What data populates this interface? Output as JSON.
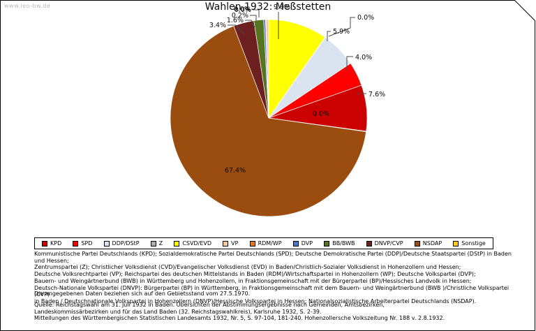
{
  "watermark": "www.leo-bw.de",
  "chart_data": {
    "type": "pie",
    "title": "Wahlen 1932: Meßstetten",
    "value_unit": "%",
    "legend_position": "bottom",
    "slices_clockwise_from_top": [
      {
        "party": "CSVD/EVD",
        "value": 9.9,
        "label": "9.9%",
        "color": "#FFFF00",
        "render_pct": 9.75,
        "label_x": 404,
        "label_y": 13,
        "anchor": "middle",
        "leader": [
          [
            399,
            17
          ],
          [
            399,
            56
          ]
        ]
      },
      {
        "party": "Z",
        "value": 0.0,
        "label": "0.0%",
        "color": "#ACACAC",
        "render_pct": 0.07,
        "label_x": 512,
        "label_y": 28,
        "anchor": "start",
        "leader": [
          [
            509,
            25
          ],
          [
            502,
            25
          ],
          [
            502,
            40
          ],
          [
            471,
            52
          ]
        ]
      },
      {
        "party": "DDP/DStP",
        "value": 5.9,
        "label": "5.9%",
        "color": "#DAE3F0",
        "render_pct": 5.9,
        "label_x": 477,
        "label_y": 48,
        "anchor": "start",
        "leader": [
          [
            474,
            45
          ],
          [
            469,
            45
          ],
          [
            469,
            59
          ]
        ]
      },
      {
        "party": "SPD",
        "value": 4.0,
        "label": "4.0%",
        "color": "#FF0000",
        "render_pct": 4.0,
        "label_x": 509,
        "label_y": 85,
        "anchor": "start",
        "leader": [
          [
            506,
            81
          ],
          [
            497,
            81
          ],
          [
            497,
            101
          ]
        ]
      },
      {
        "party": "KPD",
        "value": 7.6,
        "label": "7.6%",
        "color": "#CC0000",
        "render_pct": 7.6,
        "label_x": 528,
        "label_y": 138,
        "anchor": "start",
        "leader": [
          [
            525,
            134
          ],
          [
            512,
            134
          ]
        ]
      },
      {
        "party": "Sonstige",
        "value": 0.0,
        "label": "0.0%",
        "color": "#FFC81E",
        "render_pct": 0.07,
        "label_x": 460,
        "label_y": 166,
        "anchor": "middle",
        "leader": []
      },
      {
        "party": "NSDAP",
        "value": 67.4,
        "label": "67.4%",
        "color": "#9B4D10",
        "render_pct": 67.4,
        "label_x": 337,
        "label_y": 247,
        "anchor": "middle",
        "leader": []
      },
      {
        "party": "DNVP/CVP",
        "value": 3.4,
        "label": "3.4%",
        "color": "#6E2020",
        "render_pct": 3.4,
        "label_x": 324,
        "label_y": 39,
        "anchor": "end",
        "leader": [
          [
            326,
            36
          ],
          [
            338,
            36
          ],
          [
            350,
            49
          ]
        ]
      },
      {
        "party": "BB/BWB",
        "value": 1.6,
        "label": "1.6%",
        "color": "#567521",
        "render_pct": 1.6,
        "label_x": 349,
        "label_y": 32,
        "anchor": "end",
        "leader": [
          [
            351,
            29
          ],
          [
            360,
            29
          ],
          [
            365,
            39
          ]
        ]
      },
      {
        "party": "DVP",
        "value": 0.2,
        "label": "0.2%",
        "color": "#4478CC",
        "render_pct": 0.3,
        "label_x": 356,
        "label_y": 25,
        "anchor": "end",
        "leader": [
          [
            358,
            22
          ],
          [
            367,
            22
          ],
          [
            367,
            30
          ]
        ]
      },
      {
        "party": "RDM/WP",
        "value": 0.0,
        "label": "0.0%",
        "color": "#E67817",
        "render_pct": 0.07,
        "label_x": 359,
        "label_y": 16,
        "anchor": "end",
        "leader": []
      },
      {
        "party": "VP",
        "value": 0.0,
        "label": "0.0%",
        "color": "#F6C9A0",
        "render_pct": 0.45,
        "label_x": 360,
        "label_y": 17,
        "anchor": "end",
        "leader": [
          [
            362,
            14
          ],
          [
            371,
            14
          ],
          [
            371,
            25
          ]
        ]
      }
    ],
    "legend": [
      {
        "label": "KPD",
        "color": "#CC0000"
      },
      {
        "label": "SPD",
        "color": "#FF0000"
      },
      {
        "label": "DDP/DStP",
        "color": "#DAE3F0"
      },
      {
        "label": "Z",
        "color": "#ACACAC"
      },
      {
        "label": "CSVD/EVD",
        "color": "#FFFF00"
      },
      {
        "label": "VP",
        "color": "#F6C9A0"
      },
      {
        "label": "RDM/WP",
        "color": "#E67817"
      },
      {
        "label": "DVP",
        "color": "#4478CC"
      },
      {
        "label": "BB/BWB",
        "color": "#567521"
      },
      {
        "label": "DNVP/CVP",
        "color": "#6E2020"
      },
      {
        "label": "NSDAP",
        "color": "#9B4D10"
      },
      {
        "label": "Sonstige",
        "color": "#FFC81E"
      }
    ]
  },
  "footnotes": {
    "party_definitions": [
      "Kommunistische Partei Deutschlands (KPD); Sozialdemokratische Partei Deutschlands (SPD); Deutsche Demokratische Partei (DDP)/Deutsche Staatspartei (DStP) in Baden und Hessen;",
      "Zentrumspartei (Z); Christlicher Volksdienst (CVD)/Evangelischer Volksdienst (EVD) in Baden/Christlich-Sozialer Volksdienst in Hohenzollern und Hessen;",
      "Deutsche Volksrechtpartei (VP); Reichspartei des deutschen Mittelstands in Baden (RDM)/Wirtschaftspartei in Hohenzollern (WP); Deutsche Volkspartei (DVP);",
      "Bauern- und Weingärtnerbund (BWB) in Württemberg und Hohenzollern, in Fraktionsgemeinschaft mit der Bürgerpartei (BP)/Hessisches Landvolk in Hessen;",
      "Deutsch-Nationale Volkspartei (DNVP): Bürgerpartei (BP) in Württemberg, in Fraktionsgemeinschaft mit dem Bauern- und Weingärtnerbund (BWB )/Christliche Volkspartei (CVP)",
      "in Baden / Deutschnationale Volkspartei in Hohenzollern (DNVP)/Hessische Volkspartei in Hessen; Nationalsozialistische Arbeiterpartei Deutschlands (NSDAP)."
    ],
    "gebietsstand": "Die angegebenen Daten beziehen sich auf den Gebietsstand vom 27.5.1970.",
    "quelle": [
      "Quelle: Reichstagswahl am 31. Juli 1932 in Baden. Übersichten der Abstimmungsergebnisse nach Gemeinden, Amtsbezirken,",
      "Landeskommissärbezirken und für das Land Baden (32. Reichstagswahlkreis), Karlsruhe 1932, S. 2-39.",
      "Mitteilungen des Württembergischen Statistischen Landesamts 1932, Nr. 5, S. 97-104, 181-240. Hohenzollersche Volkszeitung Nr. 188 v. 2.8.1932."
    ]
  }
}
